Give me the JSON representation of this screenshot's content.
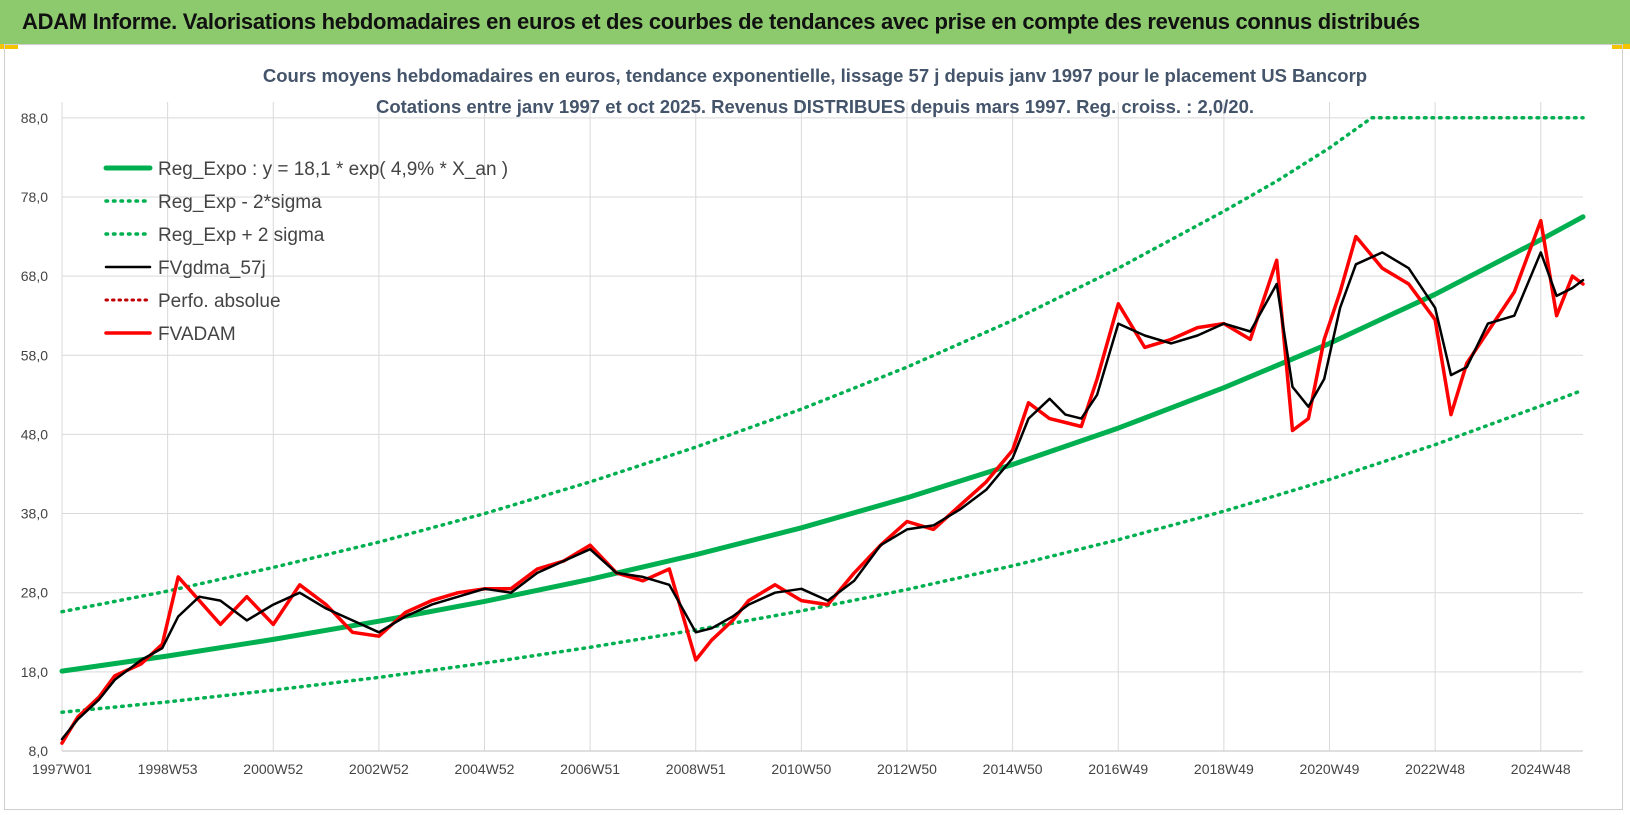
{
  "banner": {
    "title": "ADAM Informe. Valorisations hebdomadaires en euros et des courbes de tendances avec prise en compte des revenus connus distribués"
  },
  "colors": {
    "banner": "#8dca6d",
    "corner": "#f5c400",
    "reg": "#00b050",
    "gdma": "#000000",
    "perfo": "#c00000",
    "fvadam": "#ff0000",
    "grid": "#d9d9d9",
    "title": "#44546a"
  },
  "chart_data": {
    "type": "line",
    "title": "Cours moyens hebdomadaires en euros, tendance exponentielle, lissage 57 j depuis janv 1997 pour le placement US Bancorp",
    "subtitle": "Cotations entre janv 1997 et oct 2025. Revenus DISTRIBUES depuis mars 1997. Reg. croiss. : 2,0/20.",
    "xlabel": "",
    "ylabel": "",
    "ylim": [
      8,
      90
    ],
    "y_ticks": [
      "8,0",
      "18,0",
      "28,0",
      "38,0",
      "48,0",
      "58,0",
      "68,0",
      "78,0",
      "88,0"
    ],
    "x_range_years": [
      1997.0,
      2025.8
    ],
    "x_ticks": [
      "1997W01",
      "1998W53",
      "2000W52",
      "2002W52",
      "2004W52",
      "2006W51",
      "2008W51",
      "2010W50",
      "2012W50",
      "2014W50",
      "2016W49",
      "2018W49",
      "2020W49",
      "2022W48",
      "2024W48"
    ],
    "x_tick_years": [
      1997,
      1999,
      2001,
      2003,
      2005,
      2007,
      2009,
      2011,
      2013,
      2015,
      2017,
      2019,
      2021,
      2023,
      2025
    ],
    "grid": true,
    "legend_position": "top-left",
    "legend": [
      "Reg_Expo : y = 18,1 * exp( 4,9% *  X_an )",
      "Reg_Exp - 2*sigma",
      "Reg_Exp + 2 sigma",
      "FVgdma_57j",
      "Perfo. absolue",
      "FVADAM"
    ],
    "series": [
      {
        "name": "Reg_Expo : y = 18,1 * exp( 4,9% *  X_an )",
        "style": "solid-green",
        "x": [
          1997,
          1999,
          2001,
          2003,
          2005,
          2007,
          2009,
          2011,
          2013,
          2015,
          2017,
          2019,
          2021,
          2023,
          2025,
          2025.8
        ],
        "y": [
          18.1,
          20.0,
          22.1,
          24.4,
          26.9,
          29.7,
          32.8,
          36.2,
          40.0,
          44.2,
          48.8,
          53.9,
          59.5,
          65.7,
          72.6,
          75.5
        ]
      },
      {
        "name": "Reg_Exp - 2*sigma",
        "style": "dotted-green",
        "x": [
          1997,
          1999,
          2001,
          2003,
          2005,
          2007,
          2009,
          2011,
          2013,
          2015,
          2017,
          2019,
          2021,
          2023,
          2025,
          2025.8
        ],
        "y": [
          12.9,
          14.2,
          15.7,
          17.3,
          19.1,
          21.1,
          23.3,
          25.7,
          28.4,
          31.4,
          34.7,
          38.3,
          42.3,
          46.7,
          51.6,
          53.6
        ]
      },
      {
        "name": "Reg_Exp + 2 sigma",
        "style": "dotted-green",
        "x": [
          1997,
          1999,
          2001,
          2003,
          2005,
          2007,
          2009,
          2011,
          2013,
          2015,
          2017,
          2019,
          2020,
          2021,
          2021.8,
          2025.8
        ],
        "y": [
          25.6,
          28.2,
          31.2,
          34.4,
          38.0,
          42.0,
          46.4,
          51.2,
          56.5,
          62.4,
          69.0,
          76.2,
          80.0,
          84.2,
          88.0,
          88.0
        ]
      },
      {
        "name": "FVgdma_57j",
        "style": "solid-black",
        "x": [
          1997.0,
          1997.3,
          1997.7,
          1998.0,
          1998.5,
          1998.9,
          1999.2,
          1999.6,
          2000.0,
          2000.5,
          2001.0,
          2001.5,
          2002.0,
          2002.5,
          2003.0,
          2003.5,
          2004.0,
          2004.5,
          2005.0,
          2005.5,
          2006.0,
          2006.5,
          2007.0,
          2007.5,
          2008.0,
          2008.5,
          2009.0,
          2009.3,
          2009.7,
          2010.0,
          2010.5,
          2011.0,
          2011.5,
          2012.0,
          2012.5,
          2013.0,
          2013.5,
          2014.0,
          2014.5,
          2015.0,
          2015.3,
          2015.7,
          2016.0,
          2016.3,
          2016.6,
          2017.0,
          2017.5,
          2018.0,
          2018.5,
          2019.0,
          2019.5,
          2020.0,
          2020.3,
          2020.6,
          2020.9,
          2021.2,
          2021.5,
          2022.0,
          2022.5,
          2023.0,
          2023.3,
          2023.6,
          2024.0,
          2024.5,
          2025.0,
          2025.3,
          2025.6,
          2025.8
        ],
        "y": [
          9.5,
          12.0,
          14.5,
          17.0,
          19.5,
          21.0,
          25.0,
          27.5,
          27.0,
          24.5,
          26.5,
          28.0,
          26.0,
          24.5,
          23.0,
          25.0,
          26.5,
          27.5,
          28.5,
          28.0,
          30.5,
          32.0,
          33.5,
          30.5,
          30.0,
          29.0,
          23.0,
          23.5,
          25.0,
          26.5,
          28.0,
          28.5,
          27.0,
          29.5,
          34.0,
          36.0,
          36.5,
          38.5,
          41.0,
          45.0,
          50.0,
          52.5,
          50.5,
          50.0,
          53.0,
          62.0,
          60.5,
          59.5,
          60.5,
          62.0,
          61.0,
          67.0,
          54.0,
          51.5,
          55.0,
          64.0,
          69.5,
          71.0,
          69.0,
          64.0,
          55.5,
          56.5,
          62.0,
          63.0,
          71.0,
          65.5,
          66.5,
          67.5
        ]
      },
      {
        "name": "Perfo. absolue",
        "style": "dotted-darkred",
        "x": [
          1997.0,
          1997.3,
          1997.7,
          1998.0,
          1998.5,
          1998.9,
          1999.2,
          1999.6,
          2000.0,
          2000.5,
          2001.0,
          2001.5,
          2002.0,
          2002.5,
          2003.0,
          2003.5,
          2004.0,
          2004.5,
          2005.0,
          2005.5,
          2006.0,
          2006.5,
          2007.0,
          2007.5,
          2008.0,
          2008.5,
          2009.0,
          2009.3,
          2009.7,
          2010.0,
          2010.5,
          2011.0,
          2011.5,
          2012.0,
          2012.5,
          2013.0,
          2013.5,
          2014.0,
          2014.5,
          2015.0,
          2015.3,
          2015.7,
          2016.0,
          2016.3,
          2016.6,
          2017.0,
          2017.5,
          2018.0,
          2018.5,
          2019.0,
          2019.5,
          2020.0,
          2020.3,
          2020.6,
          2020.9,
          2021.2,
          2021.5,
          2022.0,
          2022.5,
          2023.0,
          2023.3,
          2023.6,
          2024.0,
          2024.5,
          2025.0,
          2025.3,
          2025.6,
          2025.8
        ],
        "y": [
          9.0,
          12.3,
          14.8,
          17.5,
          19.0,
          21.5,
          30.0,
          27.0,
          24.0,
          27.5,
          24.0,
          29.0,
          26.5,
          23.0,
          22.5,
          25.5,
          27.0,
          28.0,
          28.5,
          28.5,
          31.0,
          32.0,
          34.0,
          30.5,
          29.5,
          31.0,
          19.5,
          22.0,
          24.5,
          27.0,
          29.0,
          27.0,
          26.5,
          30.5,
          34.0,
          37.0,
          36.0,
          39.0,
          42.0,
          46.0,
          52.0,
          50.0,
          49.5,
          49.0,
          55.0,
          64.5,
          59.0,
          60.0,
          61.5,
          62.0,
          60.0,
          70.0,
          48.5,
          50.0,
          60.0,
          66.0,
          73.0,
          69.0,
          67.0,
          62.5,
          50.5,
          57.0,
          61.0,
          66.0,
          75.0,
          63.0,
          68.0,
          67.0
        ]
      },
      {
        "name": "FVADAM",
        "style": "solid-red",
        "x": [
          1997.0,
          1997.3,
          1997.7,
          1998.0,
          1998.5,
          1998.9,
          1999.2,
          1999.6,
          2000.0,
          2000.5,
          2001.0,
          2001.5,
          2002.0,
          2002.5,
          2003.0,
          2003.5,
          2004.0,
          2004.5,
          2005.0,
          2005.5,
          2006.0,
          2006.5,
          2007.0,
          2007.5,
          2008.0,
          2008.5,
          2009.0,
          2009.3,
          2009.7,
          2010.0,
          2010.5,
          2011.0,
          2011.5,
          2012.0,
          2012.5,
          2013.0,
          2013.5,
          2014.0,
          2014.5,
          2015.0,
          2015.3,
          2015.7,
          2016.0,
          2016.3,
          2016.6,
          2017.0,
          2017.5,
          2018.0,
          2018.5,
          2019.0,
          2019.5,
          2020.0,
          2020.3,
          2020.6,
          2020.9,
          2021.2,
          2021.5,
          2022.0,
          2022.5,
          2023.0,
          2023.3,
          2023.6,
          2024.0,
          2024.5,
          2025.0,
          2025.3,
          2025.6,
          2025.8
        ],
        "y": [
          9.0,
          12.3,
          14.8,
          17.5,
          19.0,
          21.5,
          30.0,
          27.0,
          24.0,
          27.5,
          24.0,
          29.0,
          26.5,
          23.0,
          22.5,
          25.5,
          27.0,
          28.0,
          28.5,
          28.5,
          31.0,
          32.0,
          34.0,
          30.5,
          29.5,
          31.0,
          19.5,
          22.0,
          24.5,
          27.0,
          29.0,
          27.0,
          26.5,
          30.5,
          34.0,
          37.0,
          36.0,
          39.0,
          42.0,
          46.0,
          52.0,
          50.0,
          49.5,
          49.0,
          55.0,
          64.5,
          59.0,
          60.0,
          61.5,
          62.0,
          60.0,
          70.0,
          48.5,
          50.0,
          60.0,
          66.0,
          73.0,
          69.0,
          67.0,
          62.5,
          50.5,
          57.0,
          61.0,
          66.0,
          75.0,
          63.0,
          68.0,
          67.0
        ]
      }
    ]
  }
}
